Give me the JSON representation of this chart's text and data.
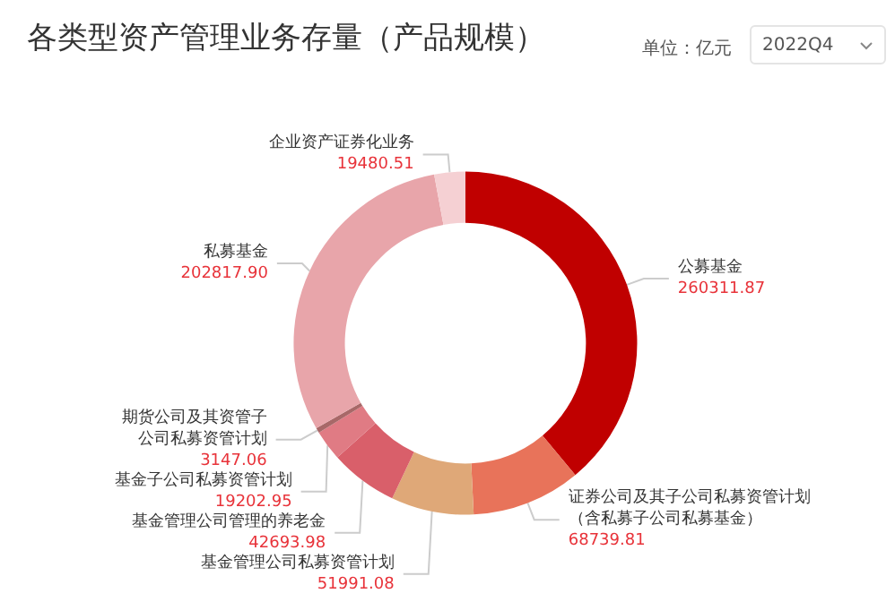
{
  "chart_data": {
    "type": "donut",
    "title": "各类型资产管理业务存量（产品规模）",
    "annotations": [
      "单位：亿元",
      "2022Q4"
    ],
    "categories": [
      "公募基金",
      "证券公司及其子公司私募资管计划（含私募子公司私募基金）",
      "基金管理公司私募资管计划",
      "基金管理公司管理的养老金",
      "基金子公司私募资管计划",
      "期货公司及其资管子公司私募资管计划",
      "私募基金",
      "企业资产证券化业务"
    ],
    "values": [
      260311.87,
      68739.81,
      51991.08,
      42693.98,
      19202.95,
      3147.06,
      202817.9,
      19480.51
    ],
    "value_labels": [
      "260311.87",
      "68739.81",
      "51991.08",
      "42693.98",
      "19202.95",
      "3147.06",
      "202817.90",
      "19480.51"
    ],
    "colors": [
      "#c00000",
      "#e8735a",
      "#dfa878",
      "#d95f6a",
      "#e07b84",
      "#a86868",
      "#e8a5aa",
      "#f5d0d3"
    ],
    "legend": false
  }
}
